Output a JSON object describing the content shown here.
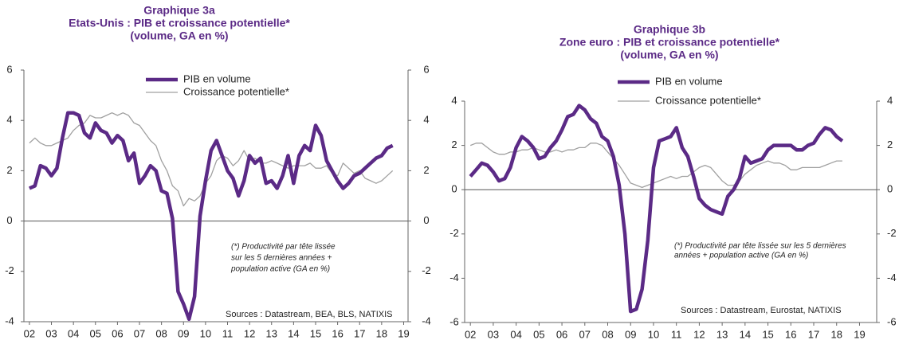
{
  "chart_data": [
    {
      "type": "line",
      "title": [
        "Graphique 3a",
        "Etats-Unis : PIB et croissance potentielle*",
        "(volume, GA en %)"
      ],
      "notes": [
        "(*) Productivité par tête lissée",
        "sur les 5 dernières années +",
        "population active (GA en %)"
      ],
      "source": "Sources : Datastream, BEA, BLS, NATIXIS",
      "x": [
        2002,
        2002.25,
        2002.5,
        2002.75,
        2003,
        2003.25,
        2003.5,
        2003.75,
        2004,
        2004.25,
        2004.5,
        2004.75,
        2005,
        2005.25,
        2005.5,
        2005.75,
        2006,
        2006.25,
        2006.5,
        2006.75,
        2007,
        2007.25,
        2007.5,
        2007.75,
        2008,
        2008.25,
        2008.5,
        2008.75,
        2009,
        2009.25,
        2009.5,
        2009.75,
        2010,
        2010.25,
        2010.5,
        2010.75,
        2011,
        2011.25,
        2011.5,
        2011.75,
        2012,
        2012.25,
        2012.5,
        2012.75,
        2013,
        2013.25,
        2013.5,
        2013.75,
        2014,
        2014.25,
        2014.5,
        2014.75,
        2015,
        2015.25,
        2015.5,
        2015.75,
        2016,
        2016.25,
        2016.5,
        2016.75,
        2017,
        2017.25,
        2017.5,
        2017.75,
        2018,
        2018.25,
        2018.5
      ],
      "series": [
        {
          "name": "PIB en volume",
          "color": "#5b2a86",
          "values": [
            1.3,
            1.4,
            2.2,
            2.1,
            1.8,
            2.1,
            3.3,
            4.3,
            4.3,
            4.2,
            3.5,
            3.3,
            3.9,
            3.6,
            3.5,
            3.1,
            3.4,
            3.2,
            2.4,
            2.7,
            1.5,
            1.8,
            2.2,
            2.0,
            1.2,
            1.1,
            0.1,
            -2.8,
            -3.3,
            -3.9,
            -3.0,
            0.2,
            1.6,
            2.8,
            3.2,
            2.6,
            2.0,
            1.7,
            1.0,
            1.6,
            2.6,
            2.3,
            2.5,
            1.5,
            1.6,
            1.3,
            1.8,
            2.6,
            1.5,
            2.6,
            3.0,
            2.8,
            3.8,
            3.4,
            2.4,
            2.0,
            1.6,
            1.3,
            1.5,
            1.8,
            1.9,
            2.1,
            2.3,
            2.5,
            2.6,
            2.9,
            3.0
          ]
        },
        {
          "name": "Croissance potentielle*",
          "color": "#a0a0a0",
          "values": [
            3.1,
            3.3,
            3.1,
            3.0,
            3.0,
            3.1,
            3.2,
            3.3,
            3.6,
            3.8,
            3.9,
            4.2,
            4.1,
            4.1,
            4.2,
            4.3,
            4.2,
            4.3,
            4.2,
            3.9,
            3.8,
            3.5,
            3.2,
            3.0,
            2.4,
            2.0,
            1.4,
            1.2,
            0.6,
            0.9,
            0.8,
            1.0,
            1.5,
            1.8,
            2.4,
            2.6,
            2.5,
            2.2,
            2.4,
            2.8,
            2.4,
            2.5,
            2.3,
            2.3,
            2.4,
            2.3,
            2.2,
            2.1,
            2.2,
            2.2,
            2.2,
            2.3,
            2.1,
            2.1,
            2.2,
            1.9,
            1.8,
            2.3,
            2.1,
            1.9,
            2.0,
            1.7,
            1.6,
            1.5,
            1.6,
            1.8,
            2.0
          ]
        }
      ],
      "xlim": [
        2001.75,
        2019.2
      ],
      "ylim": [
        -4,
        6
      ],
      "yticks": [
        -4,
        -2,
        0,
        2,
        4,
        6
      ],
      "y2lim": [
        -4,
        6
      ],
      "y2ticks": [
        -4,
        -2,
        0,
        2,
        4,
        6
      ],
      "xticks": [
        {
          "value": 2002,
          "label": "02"
        },
        {
          "value": 2003,
          "label": "03"
        },
        {
          "value": 2004,
          "label": "04"
        },
        {
          "value": 2005,
          "label": "05"
        },
        {
          "value": 2006,
          "label": "06"
        },
        {
          "value": 2007,
          "label": "07"
        },
        {
          "value": 2008,
          "label": "08"
        },
        {
          "value": 2009,
          "label": "09"
        },
        {
          "value": 2010,
          "label": "10"
        },
        {
          "value": 2011,
          "label": "11"
        },
        {
          "value": 2012,
          "label": "12"
        },
        {
          "value": 2013,
          "label": "13"
        },
        {
          "value": 2014,
          "label": "14"
        },
        {
          "value": 2015,
          "label": "15"
        },
        {
          "value": 2016,
          "label": "16"
        },
        {
          "value": 2017,
          "label": "17"
        },
        {
          "value": 2018,
          "label": "18"
        },
        {
          "value": 2019,
          "label": "19"
        }
      ]
    },
    {
      "type": "line",
      "title": [
        "Graphique 3b",
        "Zone euro : PIB et croissance potentielle*",
        "(volume, GA en %)"
      ],
      "notes": [
        "(*) Productivité par tête lissée sur les 5 dernières",
        "années + population active (GA en %)"
      ],
      "source": "Sources : Datastream, Eurostat, NATIXIS",
      "x": [
        2002,
        2002.25,
        2002.5,
        2002.75,
        2003,
        2003.25,
        2003.5,
        2003.75,
        2004,
        2004.25,
        2004.5,
        2004.75,
        2005,
        2005.25,
        2005.5,
        2005.75,
        2006,
        2006.25,
        2006.5,
        2006.75,
        2007,
        2007.25,
        2007.5,
        2007.75,
        2008,
        2008.25,
        2008.5,
        2008.75,
        2009,
        2009.25,
        2009.5,
        2009.75,
        2010,
        2010.25,
        2010.5,
        2010.75,
        2011,
        2011.25,
        2011.5,
        2011.75,
        2012,
        2012.25,
        2012.5,
        2012.75,
        2013,
        2013.25,
        2013.5,
        2013.75,
        2014,
        2014.25,
        2014.5,
        2014.75,
        2015,
        2015.25,
        2015.5,
        2015.75,
        2016,
        2016.25,
        2016.5,
        2016.75,
        2017,
        2017.25,
        2017.5,
        2017.75,
        2018,
        2018.25
      ],
      "series": [
        {
          "name": "PIB en volume",
          "color": "#5b2a86",
          "values": [
            0.6,
            0.9,
            1.2,
            1.1,
            0.8,
            0.4,
            0.5,
            1.0,
            1.9,
            2.4,
            2.2,
            1.9,
            1.4,
            1.5,
            1.9,
            2.2,
            2.7,
            3.3,
            3.4,
            3.8,
            3.6,
            3.2,
            3.0,
            2.4,
            2.2,
            1.5,
            0.2,
            -2.0,
            -5.5,
            -5.4,
            -4.5,
            -2.3,
            1.0,
            2.2,
            2.3,
            2.4,
            2.8,
            1.9,
            1.5,
            0.6,
            -0.4,
            -0.7,
            -0.9,
            -1.0,
            -1.1,
            -0.3,
            0.0,
            0.5,
            1.5,
            1.2,
            1.3,
            1.4,
            1.8,
            2.0,
            2.0,
            2.0,
            2.0,
            1.8,
            1.8,
            2.0,
            2.1,
            2.5,
            2.8,
            2.7,
            2.4,
            2.2
          ]
        },
        {
          "name": "Croissance potentielle*",
          "color": "#a0a0a0",
          "values": [
            2.0,
            2.1,
            2.1,
            1.9,
            1.7,
            1.6,
            1.6,
            1.7,
            1.7,
            1.8,
            1.8,
            1.9,
            1.8,
            1.7,
            1.7,
            1.8,
            1.7,
            1.8,
            1.8,
            1.9,
            1.9,
            2.1,
            2.1,
            2.0,
            1.7,
            1.4,
            1.1,
            0.7,
            0.3,
            0.2,
            0.1,
            0.2,
            0.3,
            0.4,
            0.5,
            0.6,
            0.5,
            0.6,
            0.6,
            0.8,
            1.0,
            1.1,
            1.0,
            0.7,
            0.4,
            0.2,
            0.2,
            0.4,
            0.7,
            0.9,
            1.1,
            1.2,
            1.3,
            1.2,
            1.2,
            1.1,
            0.9,
            0.9,
            1.0,
            1.0,
            1.0,
            1.0,
            1.1,
            1.2,
            1.3,
            1.3
          ]
        }
      ],
      "xlim": [
        2001.75,
        2019.75
      ],
      "ylim": [
        -6,
        4
      ],
      "yticks": [
        -6,
        -4,
        -2,
        0,
        2,
        4
      ],
      "y2lim": [
        -6,
        4
      ],
      "y2ticks": [
        -6,
        -4,
        -2,
        0,
        2,
        4
      ],
      "xticks": [
        {
          "value": 2002,
          "label": "02"
        },
        {
          "value": 2003,
          "label": "03"
        },
        {
          "value": 2004,
          "label": "04"
        },
        {
          "value": 2005,
          "label": "05"
        },
        {
          "value": 2006,
          "label": "06"
        },
        {
          "value": 2007,
          "label": "07"
        },
        {
          "value": 2008,
          "label": "08"
        },
        {
          "value": 2009,
          "label": "09"
        },
        {
          "value": 2010,
          "label": "10"
        },
        {
          "value": 2011,
          "label": "11"
        },
        {
          "value": 2012,
          "label": "12"
        },
        {
          "value": 2013,
          "label": "13"
        },
        {
          "value": 2014,
          "label": "14"
        },
        {
          "value": 2015,
          "label": "15"
        },
        {
          "value": 2016,
          "label": "16"
        },
        {
          "value": 2017,
          "label": "17"
        },
        {
          "value": 2018,
          "label": "18"
        },
        {
          "value": 2019,
          "label": "19"
        }
      ]
    }
  ]
}
